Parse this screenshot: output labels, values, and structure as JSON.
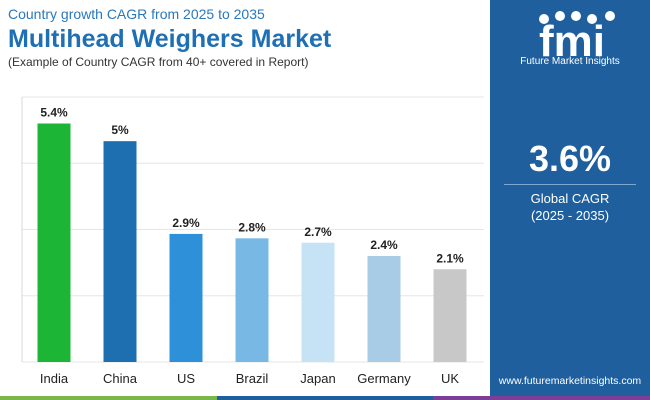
{
  "header": {
    "subtitle": "Country growth CAGR from 2025 to 2035",
    "title": "Multihead Weighers Market",
    "note": "(Example of Country CAGR from 40+ covered in Report)"
  },
  "brand": {
    "logo_letters": "fmi",
    "name": "Future Market Insights",
    "website": "www.futuremarketinsights.com"
  },
  "stat": {
    "value": "3.6%",
    "label_line1": "Global CAGR",
    "label_line2": "(2025 - 2035)"
  },
  "colors": {
    "title": "#1e6fb4",
    "panel": "#1f5f9e",
    "bottom_bar": [
      "#7ab648",
      "#1f5f9e",
      "#7b3f98"
    ]
  },
  "chart_data": {
    "type": "bar",
    "categories": [
      "India",
      "China",
      "US",
      "Brazil",
      "Japan",
      "Germany",
      "UK"
    ],
    "values": [
      5.4,
      5.0,
      2.9,
      2.8,
      2.7,
      2.4,
      2.1
    ],
    "data_labels": [
      "5.4%",
      "5%",
      "2.9%",
      "2.8%",
      "2.7%",
      "2.4%",
      "2.1%"
    ],
    "bar_colors": [
      "#1db535",
      "#1e6fb0",
      "#2e90d8",
      "#78b8e4",
      "#c6e3f5",
      "#a8cce6",
      "#c8c8c8"
    ],
    "ylim": [
      0,
      6
    ],
    "grid": true,
    "legend": "none"
  }
}
